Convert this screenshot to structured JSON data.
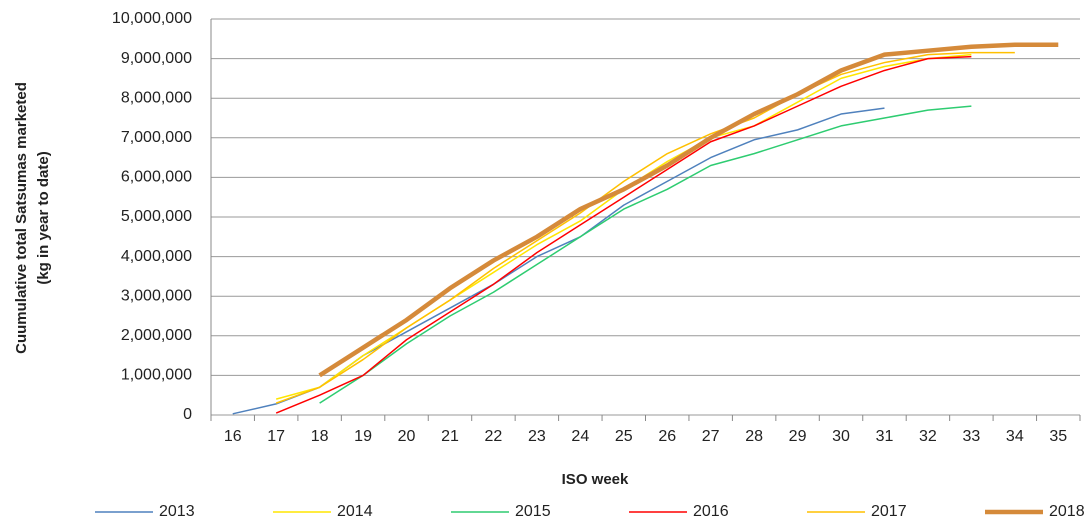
{
  "chart_data": {
    "type": "line",
    "x_label": "ISO week",
    "y_label": [
      "Cuumulative total Satsumas marketed",
      "(kg in year to date)"
    ],
    "categories": [
      16,
      17,
      18,
      19,
      20,
      21,
      22,
      23,
      24,
      25,
      26,
      27,
      28,
      29,
      30,
      31,
      32,
      33,
      34,
      35
    ],
    "ylim": [
      0,
      10000000
    ],
    "yticks": [
      0,
      {
        "value": 1000000,
        "label": "1,000,000"
      },
      {
        "value": 2000000,
        "label": "2,000,000"
      },
      {
        "value": 3000000,
        "label": "3,000,000"
      },
      {
        "value": 4000000,
        "label": "4,000,000"
      },
      {
        "value": 5000000,
        "label": "5,000,000"
      },
      {
        "value": 6000000,
        "label": "6,000,000"
      },
      {
        "value": 7000000,
        "label": "7,000,000"
      },
      {
        "value": 8000000,
        "label": "8,000,000"
      },
      {
        "value": 9000000,
        "label": "9,000,000"
      },
      {
        "value": 10000000,
        "label": "10,000,000"
      }
    ],
    "grid": true,
    "legend": "bottom",
    "series": [
      {
        "name": "2013",
        "color": "#4f81bd",
        "line_width": 1.5,
        "values": [
          30000,
          280000,
          700000,
          1500000,
          2100000,
          2700000,
          3300000,
          4000000,
          4500000,
          5300000,
          5900000,
          6500000,
          6950000,
          7200000,
          7600000,
          7750000,
          null,
          null,
          null,
          null
        ]
      },
      {
        "name": "2014",
        "color": "#ffe600",
        "line_width": 1.5,
        "values": [
          null,
          400000,
          700000,
          1500000,
          2200000,
          2900000,
          3600000,
          4300000,
          4900000,
          5700000,
          6400000,
          7000000,
          7300000,
          7900000,
          8500000,
          8800000,
          9000000,
          9100000,
          null,
          null
        ]
      },
      {
        "name": "2015",
        "color": "#2ecc71",
        "line_width": 1.5,
        "values": [
          null,
          null,
          300000,
          1000000,
          1800000,
          2500000,
          3100000,
          3800000,
          4500000,
          5200000,
          5700000,
          6300000,
          6600000,
          6950000,
          7300000,
          7500000,
          7700000,
          7800000,
          null,
          null
        ]
      },
      {
        "name": "2016",
        "color": "#ff0000",
        "line_width": 1.5,
        "values": [
          null,
          50000,
          500000,
          1000000,
          1900000,
          2600000,
          3300000,
          4100000,
          4800000,
          5500000,
          6200000,
          6900000,
          7300000,
          7800000,
          8300000,
          8700000,
          9000000,
          9050000,
          null,
          null
        ]
      },
      {
        "name": "2017",
        "color": "#ffc000",
        "line_width": 1.5,
        "values": [
          null,
          300000,
          700000,
          1400000,
          2200000,
          2900000,
          3700000,
          4400000,
          5100000,
          5900000,
          6600000,
          7100000,
          7500000,
          8100000,
          8600000,
          8900000,
          9100000,
          9150000,
          9150000,
          null
        ]
      },
      {
        "name": "2018",
        "color": "#d58a3a",
        "line_width": 4.5,
        "values": [
          null,
          null,
          1000000,
          1700000,
          2400000,
          3200000,
          3900000,
          4500000,
          5200000,
          5700000,
          6300000,
          7000000,
          7600000,
          8100000,
          8700000,
          9100000,
          9200000,
          9300000,
          9350000,
          9350000
        ]
      }
    ]
  }
}
